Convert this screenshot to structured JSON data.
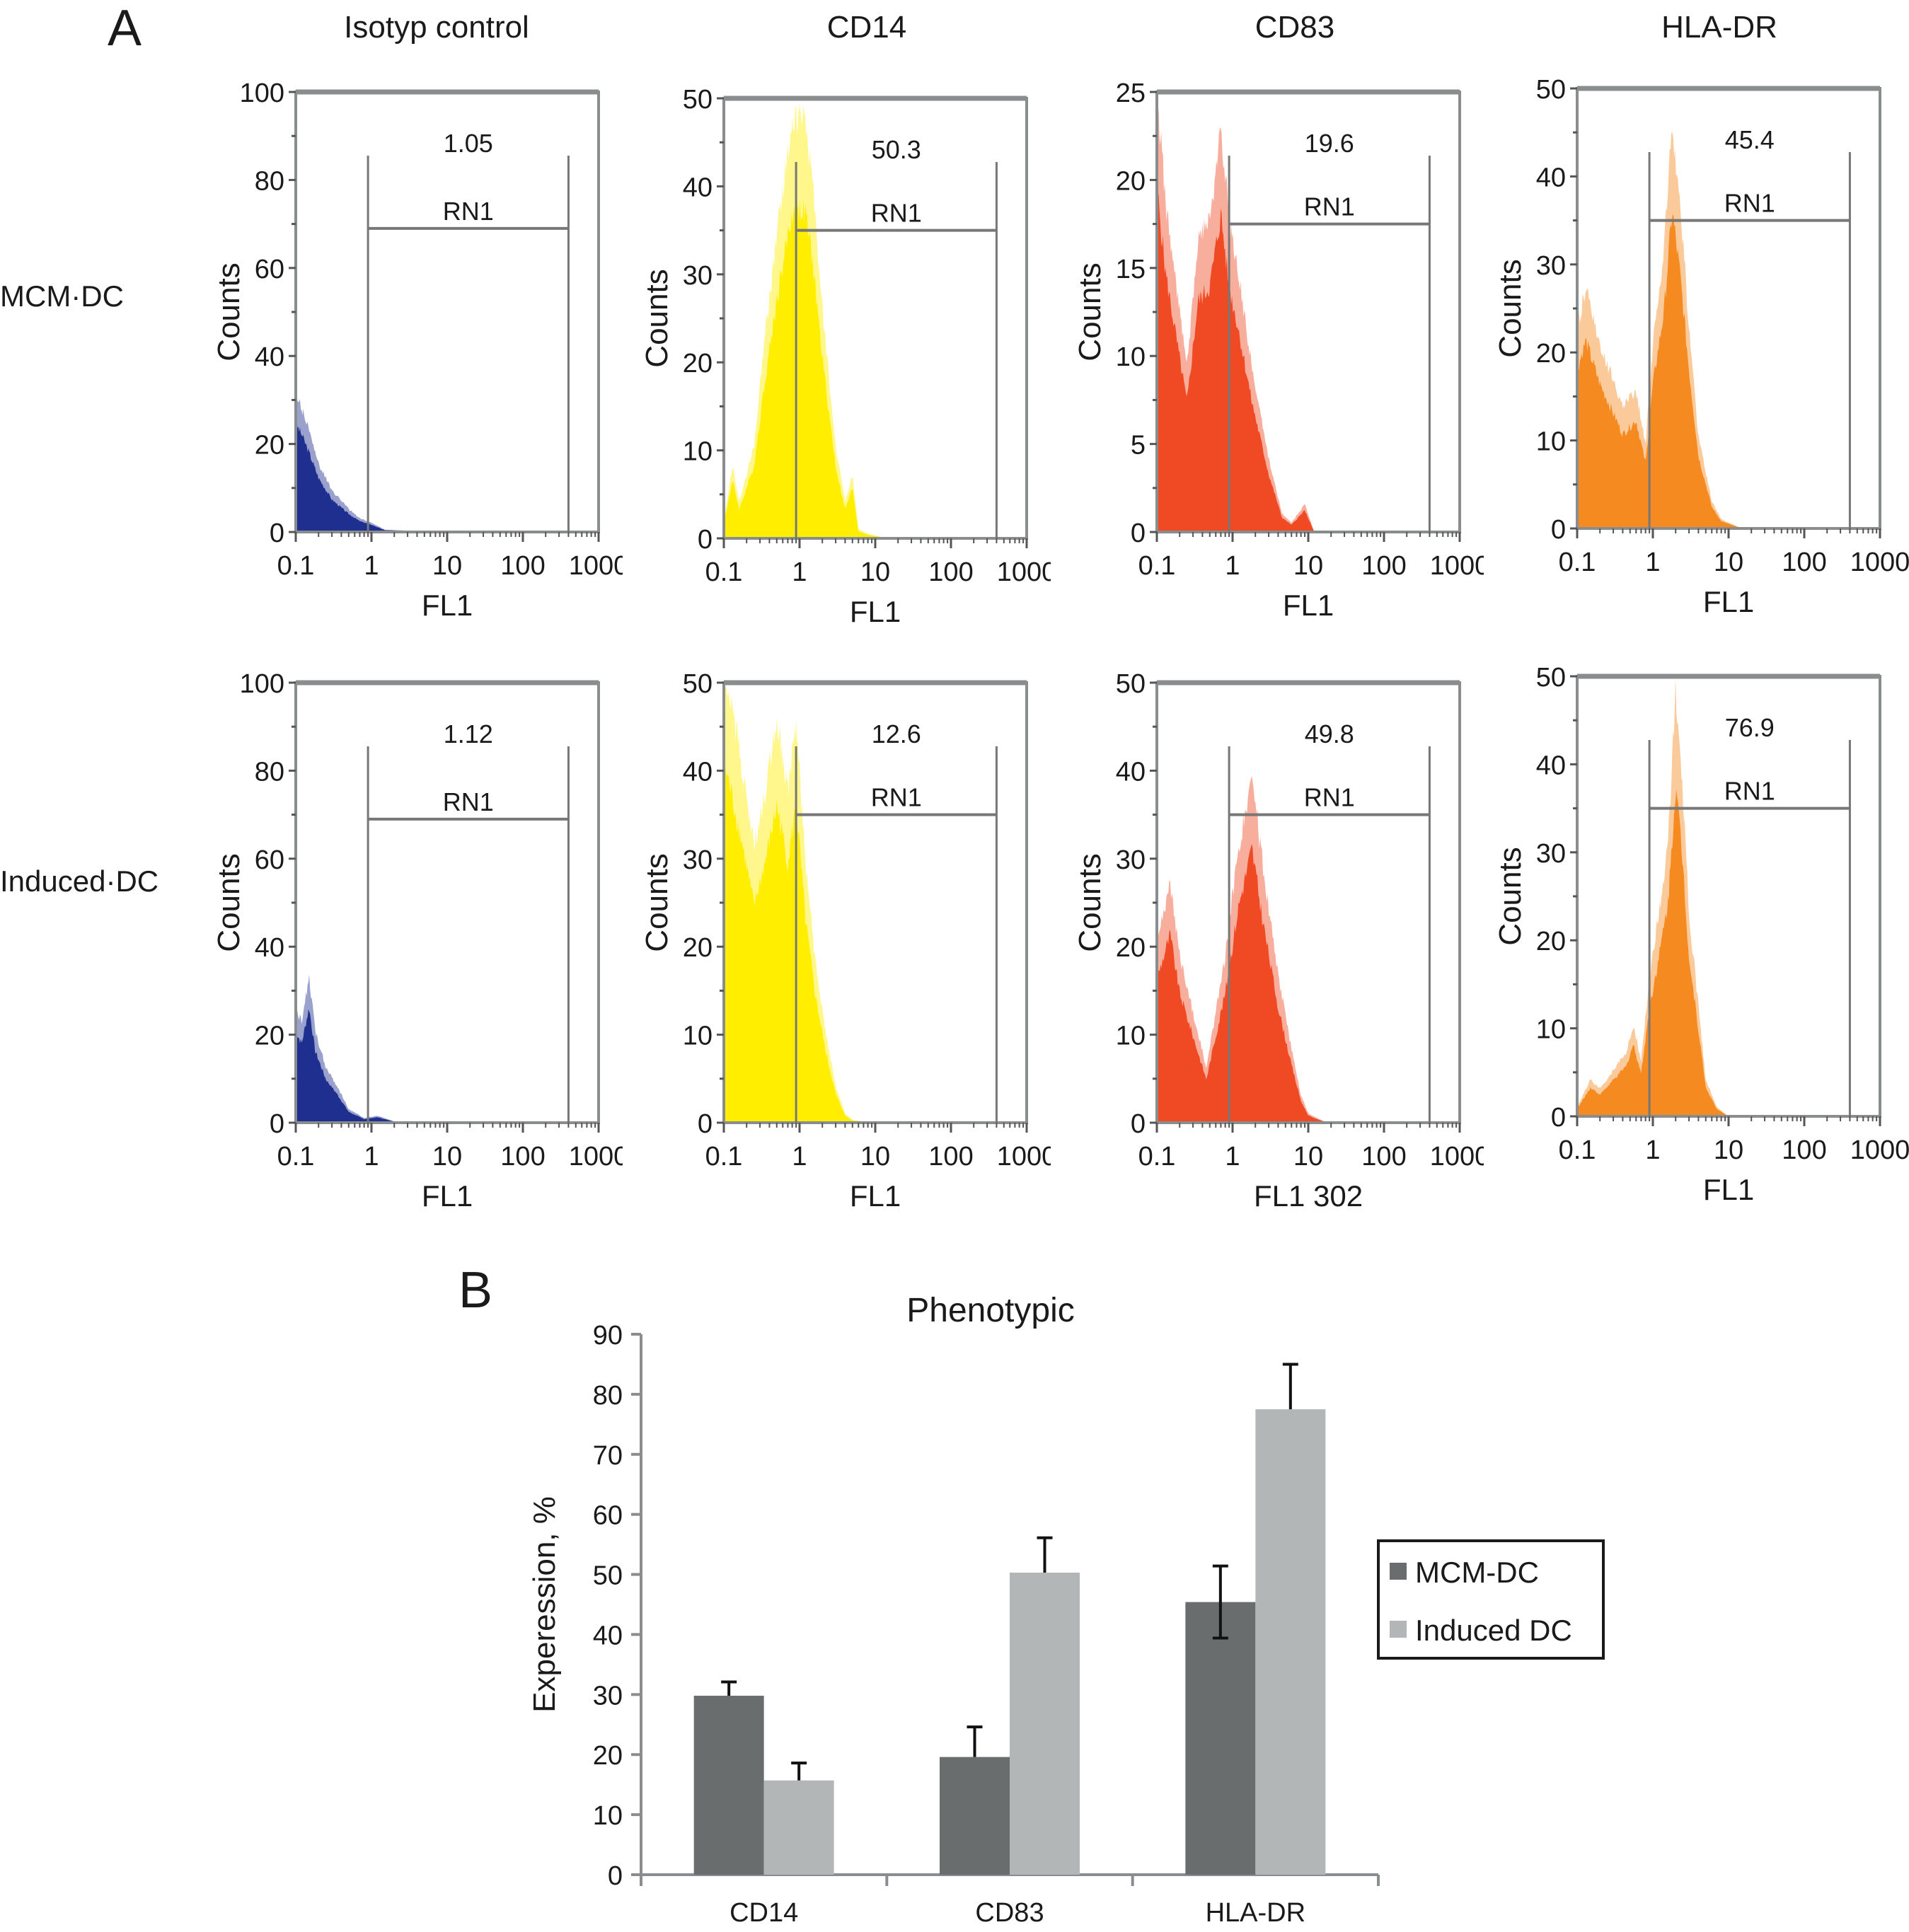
{
  "panel_a": {
    "letter": "A",
    "column_titles": [
      "Isotyp control",
      "CD14",
      "CD83",
      "HLA-DR"
    ],
    "row_labels": [
      "MCM·DC",
      "Induced·DC"
    ]
  },
  "panel_b": {
    "letter": "B"
  },
  "chart_data": [
    {
      "type": "area",
      "id": "hist-mcm-isotype",
      "row": "MCM·DC",
      "column": "Isotyp control",
      "color": "#1f2f8f",
      "xlabel": "FL1",
      "ylabel": "Counts",
      "xscale": "log",
      "xlim": [
        0.1,
        1000
      ],
      "xticks": [
        "0.1",
        "1",
        "10",
        "100",
        "1000"
      ],
      "ylim": [
        0,
        100
      ],
      "yticks": [
        "0",
        "20",
        "40",
        "60",
        "80",
        "100"
      ],
      "gate": {
        "label": "RN1",
        "percent": "1.05",
        "x_range": [
          0.9,
          400
        ],
        "level": 69
      },
      "profile": [
        [
          0.1,
          30
        ],
        [
          0.12,
          27
        ],
        [
          0.15,
          22
        ],
        [
          0.2,
          15
        ],
        [
          0.3,
          9
        ],
        [
          0.5,
          5
        ],
        [
          0.7,
          3
        ],
        [
          1.0,
          2
        ],
        [
          1.5,
          0.5
        ],
        [
          3,
          0.3
        ],
        [
          10,
          0
        ]
      ]
    },
    {
      "type": "area",
      "id": "hist-mcm-cd14",
      "row": "MCM·DC",
      "column": "CD14",
      "color": "#ffee00",
      "xlabel": "FL1",
      "ylabel": "Counts",
      "xscale": "log",
      "xlim": [
        0.1,
        1000
      ],
      "xticks": [
        "0.1",
        "1",
        "10",
        "100",
        "1000"
      ],
      "ylim": [
        0,
        50
      ],
      "yticks": [
        "0",
        "10",
        "20",
        "30",
        "40",
        "50"
      ],
      "gate": {
        "label": "RN1",
        "percent": "50.3",
        "x_range": [
          0.9,
          400
        ],
        "level": 35
      },
      "profile": [
        [
          0.1,
          2
        ],
        [
          0.13,
          8
        ],
        [
          0.16,
          4
        ],
        [
          0.25,
          10
        ],
        [
          0.35,
          22
        ],
        [
          0.5,
          33
        ],
        [
          0.7,
          42
        ],
        [
          0.85,
          46
        ],
        [
          1.2,
          45
        ],
        [
          1.5,
          38
        ],
        [
          2,
          25
        ],
        [
          3,
          10
        ],
        [
          4,
          4
        ],
        [
          5,
          7
        ],
        [
          6,
          1
        ],
        [
          8,
          0.5
        ],
        [
          15,
          0
        ]
      ]
    },
    {
      "type": "area",
      "id": "hist-mcm-cd83",
      "row": "MCM·DC",
      "column": "CD83",
      "color": "#f04a25",
      "xlabel": "FL1",
      "ylabel": "Counts",
      "xscale": "log",
      "xlim": [
        0.1,
        1000
      ],
      "xticks": [
        "0.1",
        "1",
        "10",
        "100",
        "1000"
      ],
      "ylim": [
        0,
        25
      ],
      "yticks": [
        "0",
        "5",
        "10",
        "15",
        "20",
        "25"
      ],
      "gate": {
        "label": "RN1",
        "percent": "19.6",
        "x_range": [
          0.9,
          400
        ],
        "level": 17.5
      },
      "profile": [
        [
          0.1,
          24
        ],
        [
          0.13,
          18
        ],
        [
          0.2,
          12
        ],
        [
          0.25,
          9
        ],
        [
          0.35,
          16
        ],
        [
          0.5,
          17
        ],
        [
          0.7,
          22
        ],
        [
          0.9,
          17
        ],
        [
          1.2,
          14
        ],
        [
          1.8,
          9
        ],
        [
          3,
          4
        ],
        [
          4.5,
          1
        ],
        [
          6,
          0.5
        ],
        [
          9,
          1.5
        ],
        [
          12,
          0
        ]
      ]
    },
    {
      "type": "area",
      "id": "hist-mcm-hladr",
      "row": "MCM·DC",
      "column": "HLA-DR",
      "color": "#f48a20",
      "xlabel": "FL1",
      "ylabel": "Counts",
      "xscale": "log",
      "xlim": [
        0.1,
        1000
      ],
      "xticks": [
        "0.1",
        "1",
        "10",
        "100",
        "1000"
      ],
      "ylim": [
        0,
        50
      ],
      "yticks": [
        "0",
        "10",
        "20",
        "30",
        "40",
        "50"
      ],
      "gate": {
        "label": "RN1",
        "percent": "45.4",
        "x_range": [
          0.9,
          400
        ],
        "level": 35
      },
      "profile": [
        [
          0.1,
          22
        ],
        [
          0.13,
          26
        ],
        [
          0.2,
          20
        ],
        [
          0.3,
          16
        ],
        [
          0.4,
          13
        ],
        [
          0.6,
          15
        ],
        [
          0.8,
          9
        ],
        [
          1.0,
          20
        ],
        [
          1.4,
          30
        ],
        [
          1.8,
          44
        ],
        [
          2.3,
          35
        ],
        [
          3,
          22
        ],
        [
          4,
          10
        ],
        [
          6,
          3
        ],
        [
          8,
          1
        ],
        [
          15,
          0
        ]
      ]
    },
    {
      "type": "area",
      "id": "hist-induced-isotype",
      "row": "Induced·DC",
      "column": "Isotyp control",
      "color": "#1f2f8f",
      "xlabel": "FL1",
      "ylabel": "Counts",
      "xscale": "log",
      "xlim": [
        0.1,
        1000
      ],
      "xticks": [
        "0.1",
        "1",
        "10",
        "100",
        "1000"
      ],
      "ylim": [
        0,
        100
      ],
      "yticks": [
        "0",
        "20",
        "40",
        "60",
        "80",
        "100"
      ],
      "gate": {
        "label": "RN1",
        "percent": "1.12",
        "x_range": [
          0.9,
          400
        ],
        "level": 69
      },
      "profile": [
        [
          0.1,
          25
        ],
        [
          0.12,
          22
        ],
        [
          0.15,
          32
        ],
        [
          0.18,
          20
        ],
        [
          0.25,
          12
        ],
        [
          0.35,
          8
        ],
        [
          0.5,
          3
        ],
        [
          0.8,
          1
        ],
        [
          1.2,
          1.5
        ],
        [
          2,
          0.3
        ],
        [
          10,
          0
        ]
      ]
    },
    {
      "type": "area",
      "id": "hist-induced-cd14",
      "row": "Induced·DC",
      "column": "CD14",
      "color": "#ffee00",
      "xlabel": "FL1",
      "ylabel": "Counts",
      "xscale": "log",
      "xlim": [
        0.1,
        1000
      ],
      "xticks": [
        "0.1",
        "1",
        "10",
        "100",
        "1000"
      ],
      "ylim": [
        0,
        50
      ],
      "yticks": [
        "0",
        "10",
        "20",
        "30",
        "40",
        "50"
      ],
      "gate": {
        "label": "RN1",
        "percent": "12.6",
        "x_range": [
          0.9,
          400
        ],
        "level": 35
      },
      "profile": [
        [
          0.1,
          50
        ],
        [
          0.13,
          45
        ],
        [
          0.18,
          38
        ],
        [
          0.25,
          30
        ],
        [
          0.35,
          36
        ],
        [
          0.5,
          44
        ],
        [
          0.7,
          36
        ],
        [
          0.9,
          44
        ],
        [
          1.2,
          28
        ],
        [
          1.6,
          18
        ],
        [
          2.2,
          10
        ],
        [
          3,
          4
        ],
        [
          4,
          1
        ],
        [
          5,
          0.3
        ],
        [
          10,
          0
        ]
      ]
    },
    {
      "type": "area",
      "id": "hist-induced-cd83",
      "row": "Induced·DC",
      "column": "CD83",
      "color": "#f04a25",
      "xlabel": "FL1 302",
      "ylabel": "Counts",
      "xscale": "log",
      "xlim": [
        0.1,
        1000
      ],
      "xticks": [
        "0.1",
        "1",
        "10",
        "100",
        "1000"
      ],
      "ylim": [
        0,
        50
      ],
      "yticks": [
        "0",
        "10",
        "20",
        "30",
        "40",
        "50"
      ],
      "gate": {
        "label": "RN1",
        "percent": "49.8",
        "x_range": [
          0.9,
          400
        ],
        "level": 35
      },
      "profile": [
        [
          0.1,
          20
        ],
        [
          0.15,
          26
        ],
        [
          0.2,
          18
        ],
        [
          0.3,
          12
        ],
        [
          0.45,
          6
        ],
        [
          0.6,
          12
        ],
        [
          0.8,
          18
        ],
        [
          1.2,
          30
        ],
        [
          1.8,
          38
        ],
        [
          2.5,
          28
        ],
        [
          4,
          16
        ],
        [
          6,
          8
        ],
        [
          8,
          3
        ],
        [
          10,
          1
        ],
        [
          13,
          0.5
        ],
        [
          18,
          0
        ]
      ]
    },
    {
      "type": "area",
      "id": "hist-induced-hladr",
      "row": "Induced·DC",
      "column": "HLA-DR",
      "color": "#f48a20",
      "xlabel": "FL1",
      "ylabel": "Counts",
      "xscale": "log",
      "xlim": [
        0.1,
        1000
      ],
      "xticks": [
        "0.1",
        "1",
        "10",
        "100",
        "1000"
      ],
      "ylim": [
        0,
        50
      ],
      "yticks": [
        "0",
        "10",
        "20",
        "30",
        "40",
        "50"
      ],
      "gate": {
        "label": "RN1",
        "percent": "76.9",
        "x_range": [
          0.9,
          400
        ],
        "level": 35
      },
      "profile": [
        [
          0.1,
          1
        ],
        [
          0.15,
          4
        ],
        [
          0.2,
          3
        ],
        [
          0.3,
          5
        ],
        [
          0.45,
          7
        ],
        [
          0.55,
          10
        ],
        [
          0.7,
          6
        ],
        [
          0.9,
          15
        ],
        [
          1.2,
          22
        ],
        [
          1.6,
          30
        ],
        [
          2.0,
          46
        ],
        [
          2.5,
          35
        ],
        [
          3,
          22
        ],
        [
          4,
          12
        ],
        [
          5,
          4
        ],
        [
          7,
          1
        ],
        [
          10,
          0
        ]
      ]
    },
    {
      "type": "bar",
      "id": "phenotypic-bar",
      "title": "Phenotypic",
      "xlabel": "",
      "ylabel": "Experession, %",
      "categories": [
        "CD14",
        "CD83",
        "HLA-DR"
      ],
      "ylim": [
        0,
        90
      ],
      "yticks": [
        "0",
        "10",
        "20",
        "30",
        "40",
        "50",
        "60",
        "70",
        "80",
        "90"
      ],
      "grid": false,
      "legend_position": "right",
      "series": [
        {
          "name": "MCM-DC",
          "color": "#6a6d6e",
          "values": [
            29.8,
            19.6,
            45.4
          ],
          "errors": [
            2.3,
            5.0,
            6.0
          ]
        },
        {
          "name": "Induced DC",
          "color": "#b3b6b7",
          "values": [
            15.7,
            50.3,
            77.5
          ],
          "errors": [
            2.9,
            5.8,
            7.5
          ]
        }
      ]
    }
  ]
}
